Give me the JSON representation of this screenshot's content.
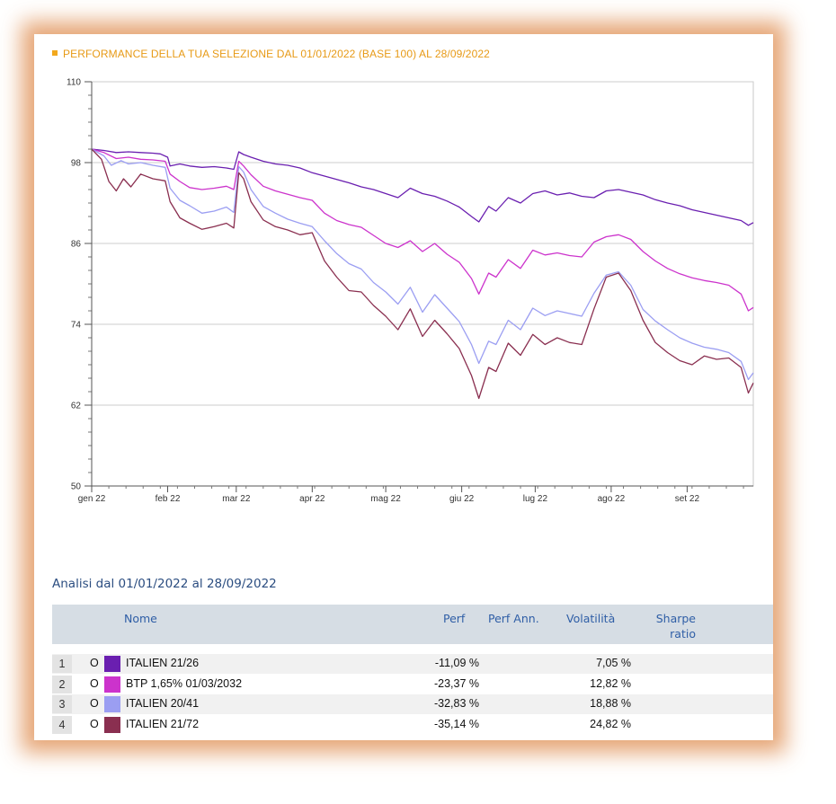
{
  "chart_data": {
    "type": "line",
    "title": "PERFORMANCE DELLA TUA SELEZIONE DAL 01/01/2022 (BASE 100) AL 28/09/2022",
    "ylim": [
      50,
      110
    ],
    "yticks": [
      50,
      62,
      74,
      86,
      98,
      110
    ],
    "xlim": [
      0,
      270
    ],
    "x_ticks": [
      {
        "label": "gen 22",
        "day": 0
      },
      {
        "label": "feb 22",
        "day": 31
      },
      {
        "label": "mar 22",
        "day": 59
      },
      {
        "label": "apr 22",
        "day": 90
      },
      {
        "label": "mag 22",
        "day": 120
      },
      {
        "label": "giu 22",
        "day": 151
      },
      {
        "label": "lug 22",
        "day": 181
      },
      {
        "label": "ago 22",
        "day": 212
      },
      {
        "label": "set 22",
        "day": 243
      }
    ],
    "grid": "horizontal",
    "series": [
      {
        "name": "ITALIEN 21/26",
        "color": "#6a1fb0",
        "points": [
          [
            0,
            100
          ],
          [
            5,
            99.8
          ],
          [
            10,
            99.5
          ],
          [
            15,
            99.6
          ],
          [
            20,
            99.5
          ],
          [
            25,
            99.4
          ],
          [
            28,
            99.3
          ],
          [
            31,
            98.8
          ],
          [
            32,
            97.5
          ],
          [
            36,
            97.8
          ],
          [
            40,
            97.5
          ],
          [
            45,
            97.3
          ],
          [
            50,
            97.4
          ],
          [
            55,
            97.2
          ],
          [
            58,
            97.0
          ],
          [
            60,
            99.6
          ],
          [
            62,
            99.2
          ],
          [
            65,
            98.8
          ],
          [
            70,
            98.2
          ],
          [
            75,
            97.8
          ],
          [
            80,
            97.6
          ],
          [
            85,
            97.2
          ],
          [
            90,
            96.5
          ],
          [
            95,
            96.0
          ],
          [
            100,
            95.5
          ],
          [
            105,
            95.0
          ],
          [
            110,
            94.4
          ],
          [
            115,
            94.0
          ],
          [
            120,
            93.4
          ],
          [
            125,
            92.8
          ],
          [
            130,
            94.2
          ],
          [
            135,
            93.4
          ],
          [
            140,
            93.0
          ],
          [
            145,
            92.3
          ],
          [
            150,
            91.4
          ],
          [
            155,
            90.0
          ],
          [
            158,
            89.2
          ],
          [
            162,
            91.5
          ],
          [
            165,
            90.8
          ],
          [
            170,
            92.8
          ],
          [
            175,
            92.0
          ],
          [
            180,
            93.4
          ],
          [
            185,
            93.8
          ],
          [
            190,
            93.2
          ],
          [
            195,
            93.5
          ],
          [
            200,
            93.0
          ],
          [
            205,
            92.8
          ],
          [
            210,
            93.8
          ],
          [
            215,
            94.0
          ],
          [
            220,
            93.6
          ],
          [
            225,
            93.2
          ],
          [
            230,
            92.5
          ],
          [
            235,
            92.0
          ],
          [
            240,
            91.6
          ],
          [
            245,
            91.0
          ],
          [
            250,
            90.6
          ],
          [
            255,
            90.2
          ],
          [
            260,
            89.8
          ],
          [
            265,
            89.4
          ],
          [
            268,
            88.7
          ],
          [
            270,
            89.1
          ]
        ]
      },
      {
        "name": "BTP 1,65% 01/03/2032",
        "color": "#cc33cc",
        "points": [
          [
            0,
            100
          ],
          [
            5,
            99.5
          ],
          [
            10,
            98.6
          ],
          [
            15,
            98.8
          ],
          [
            20,
            98.5
          ],
          [
            25,
            98.4
          ],
          [
            30,
            98.2
          ],
          [
            32,
            96.3
          ],
          [
            36,
            95.2
          ],
          [
            40,
            94.3
          ],
          [
            45,
            94.0
          ],
          [
            50,
            94.2
          ],
          [
            55,
            94.5
          ],
          [
            58,
            94.0
          ],
          [
            60,
            98.2
          ],
          [
            62,
            97.5
          ],
          [
            65,
            96.2
          ],
          [
            70,
            94.5
          ],
          [
            75,
            93.8
          ],
          [
            80,
            93.3
          ],
          [
            85,
            92.8
          ],
          [
            90,
            92.4
          ],
          [
            95,
            90.5
          ],
          [
            100,
            89.4
          ],
          [
            105,
            88.8
          ],
          [
            110,
            88.4
          ],
          [
            115,
            87.2
          ],
          [
            120,
            86.0
          ],
          [
            125,
            85.4
          ],
          [
            130,
            86.4
          ],
          [
            135,
            84.8
          ],
          [
            140,
            86.0
          ],
          [
            145,
            84.4
          ],
          [
            150,
            83.2
          ],
          [
            155,
            80.8
          ],
          [
            158,
            78.5
          ],
          [
            162,
            81.6
          ],
          [
            165,
            81.0
          ],
          [
            170,
            83.6
          ],
          [
            175,
            82.3
          ],
          [
            180,
            85.0
          ],
          [
            185,
            84.3
          ],
          [
            190,
            84.6
          ],
          [
            195,
            84.2
          ],
          [
            200,
            84.0
          ],
          [
            205,
            86.2
          ],
          [
            210,
            87.0
          ],
          [
            215,
            87.3
          ],
          [
            220,
            86.6
          ],
          [
            225,
            84.8
          ],
          [
            230,
            83.4
          ],
          [
            235,
            82.3
          ],
          [
            240,
            81.5
          ],
          [
            245,
            80.9
          ],
          [
            250,
            80.5
          ],
          [
            255,
            80.2
          ],
          [
            260,
            79.8
          ],
          [
            265,
            78.5
          ],
          [
            268,
            76.0
          ],
          [
            270,
            76.5
          ]
        ]
      },
      {
        "name": "ITALIEN 20/41",
        "color": "#9b9ef2",
        "points": [
          [
            0,
            100
          ],
          [
            5,
            99.0
          ],
          [
            8,
            97.6
          ],
          [
            12,
            98.3
          ],
          [
            15,
            97.8
          ],
          [
            20,
            98.0
          ],
          [
            25,
            97.6
          ],
          [
            30,
            97.3
          ],
          [
            32,
            94.2
          ],
          [
            36,
            92.4
          ],
          [
            40,
            91.6
          ],
          [
            45,
            90.5
          ],
          [
            50,
            90.8
          ],
          [
            55,
            91.4
          ],
          [
            58,
            90.6
          ],
          [
            60,
            97.4
          ],
          [
            62,
            96.6
          ],
          [
            65,
            94.0
          ],
          [
            70,
            91.5
          ],
          [
            75,
            90.5
          ],
          [
            80,
            89.6
          ],
          [
            85,
            89.0
          ],
          [
            90,
            88.5
          ],
          [
            95,
            86.4
          ],
          [
            100,
            84.5
          ],
          [
            105,
            83.0
          ],
          [
            110,
            82.2
          ],
          [
            115,
            80.2
          ],
          [
            120,
            78.8
          ],
          [
            125,
            77.0
          ],
          [
            130,
            79.5
          ],
          [
            135,
            75.8
          ],
          [
            140,
            78.4
          ],
          [
            145,
            76.4
          ],
          [
            150,
            74.4
          ],
          [
            155,
            71.0
          ],
          [
            158,
            68.2
          ],
          [
            162,
            71.5
          ],
          [
            165,
            71.0
          ],
          [
            170,
            74.6
          ],
          [
            175,
            73.2
          ],
          [
            180,
            76.4
          ],
          [
            185,
            75.3
          ],
          [
            190,
            76.0
          ],
          [
            195,
            75.6
          ],
          [
            200,
            75.2
          ],
          [
            205,
            78.6
          ],
          [
            210,
            81.3
          ],
          [
            215,
            81.8
          ],
          [
            220,
            79.8
          ],
          [
            225,
            76.2
          ],
          [
            230,
            74.5
          ],
          [
            235,
            73.2
          ],
          [
            240,
            72.0
          ],
          [
            245,
            71.2
          ],
          [
            250,
            70.6
          ],
          [
            255,
            70.3
          ],
          [
            260,
            69.8
          ],
          [
            265,
            68.5
          ],
          [
            268,
            65.8
          ],
          [
            270,
            66.8
          ]
        ]
      },
      {
        "name": "ITALIEN 21/72",
        "color": "#8a2f50",
        "points": [
          [
            0,
            100
          ],
          [
            4,
            98.5
          ],
          [
            7,
            95.2
          ],
          [
            10,
            93.8
          ],
          [
            13,
            95.6
          ],
          [
            16,
            94.4
          ],
          [
            20,
            96.3
          ],
          [
            25,
            95.6
          ],
          [
            30,
            95.3
          ],
          [
            32,
            92.2
          ],
          [
            36,
            89.8
          ],
          [
            40,
            89.0
          ],
          [
            45,
            88.1
          ],
          [
            50,
            88.5
          ],
          [
            55,
            89.0
          ],
          [
            58,
            88.3
          ],
          [
            60,
            96.5
          ],
          [
            62,
            95.6
          ],
          [
            65,
            92.2
          ],
          [
            70,
            89.5
          ],
          [
            75,
            88.5
          ],
          [
            80,
            88.0
          ],
          [
            85,
            87.3
          ],
          [
            90,
            87.6
          ],
          [
            95,
            83.4
          ],
          [
            100,
            81.0
          ],
          [
            105,
            79.0
          ],
          [
            110,
            78.8
          ],
          [
            115,
            76.8
          ],
          [
            120,
            75.2
          ],
          [
            125,
            73.2
          ],
          [
            130,
            76.3
          ],
          [
            135,
            72.2
          ],
          [
            140,
            74.6
          ],
          [
            145,
            72.6
          ],
          [
            150,
            70.4
          ],
          [
            155,
            66.4
          ],
          [
            158,
            63.0
          ],
          [
            162,
            67.6
          ],
          [
            165,
            67.0
          ],
          [
            170,
            71.2
          ],
          [
            175,
            69.4
          ],
          [
            180,
            72.5
          ],
          [
            185,
            71.0
          ],
          [
            190,
            72.0
          ],
          [
            195,
            71.3
          ],
          [
            200,
            71.0
          ],
          [
            205,
            76.3
          ],
          [
            210,
            81.0
          ],
          [
            215,
            81.6
          ],
          [
            220,
            79.0
          ],
          [
            225,
            74.6
          ],
          [
            230,
            71.3
          ],
          [
            235,
            69.8
          ],
          [
            240,
            68.6
          ],
          [
            245,
            68.0
          ],
          [
            250,
            69.3
          ],
          [
            255,
            68.8
          ],
          [
            260,
            69.0
          ],
          [
            265,
            67.6
          ],
          [
            268,
            63.8
          ],
          [
            270,
            65.3
          ]
        ]
      }
    ]
  },
  "analysis": {
    "title": "Analisi dal 01/01/2022 al 28/09/2022",
    "headers": {
      "name": "Nome",
      "perf": "Perf",
      "perf_ann": "Perf Ann.",
      "volatility": "Volatilità",
      "sharpe_line1": "Sharpe",
      "sharpe_line2": "ratio"
    },
    "rows": [
      {
        "index": "1",
        "marker": "O",
        "color": "#6a1fb0",
        "name": "ITALIEN 21/26",
        "perf": "-11,09 %",
        "volatility": "7,05 %"
      },
      {
        "index": "2",
        "marker": "O",
        "color": "#cc33cc",
        "name": "BTP 1,65% 01/03/2032",
        "perf": "-23,37 %",
        "volatility": "12,82 %"
      },
      {
        "index": "3",
        "marker": "O",
        "color": "#9b9ef2",
        "name": "ITALIEN 20/41",
        "perf": "-32,83 %",
        "volatility": "18,88 %"
      },
      {
        "index": "4",
        "marker": "O",
        "color": "#8a2f50",
        "name": "ITALIEN 21/72",
        "perf": "-35,14 %",
        "volatility": "24,82 %"
      }
    ]
  }
}
